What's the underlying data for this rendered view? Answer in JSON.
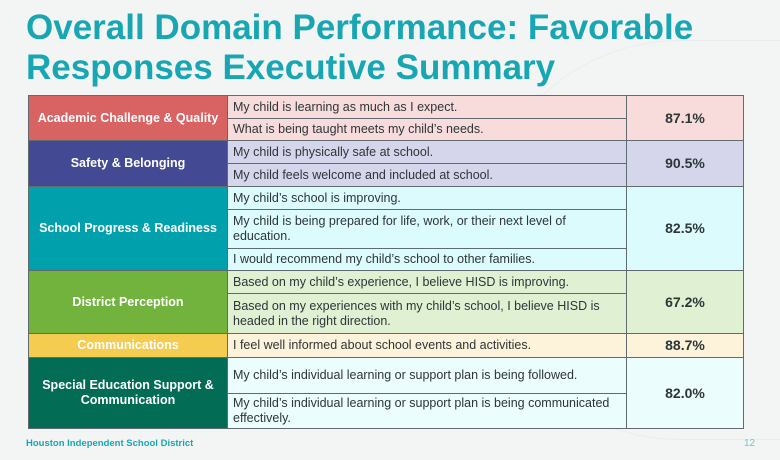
{
  "title": "Overall Domain Performance: Favorable Responses Executive Summary",
  "domains": [
    {
      "name": "Academic Challenge & Quality",
      "color": "#d96262",
      "bg": "#f8dcdc",
      "score": "87.1%",
      "questions": [
        "My child is learning as much as I expect.",
        "What is being taught meets my child’s needs."
      ]
    },
    {
      "name": "Safety & Belonging",
      "color": "#434a93",
      "bg": "#d5d6ec",
      "score": "90.5%",
      "questions": [
        "My child is physically safe at school.",
        "My child feels welcome and included at school."
      ]
    },
    {
      "name": "School Progress & Readiness",
      "color": "#00a1ad",
      "bg": "#dcfbfd",
      "score": "82.5%",
      "questions": [
        "My child’s school is improving.",
        "My child is being prepared for life, work, or their next level of education.",
        "I would recommend my child’s school to other families."
      ]
    },
    {
      "name": "District Perception",
      "color": "#72b33d",
      "bg": "#e0f0d3",
      "score": "67.2%",
      "questions": [
        "Based on my child’s experience, I believe HISD is improving.",
        "Based on my experiences with my child’s school, I believe HISD is headed in the right direction."
      ]
    },
    {
      "name": "Communications",
      "color": "#f4cc4f",
      "bg": "#fdf3da",
      "score": "88.7%",
      "questions": [
        "I feel well informed about school events and activities."
      ]
    },
    {
      "name": "Special Education Support & Communication",
      "color": "#036c55",
      "bg": "#ebfdfd",
      "score": "82.0%",
      "questions": [
        "My child’s individual learning or support plan is being followed.",
        "My child’s individual learning or support plan is being communicated effectively."
      ]
    }
  ],
  "footer": "Houston Independent School District",
  "page_number": "12"
}
